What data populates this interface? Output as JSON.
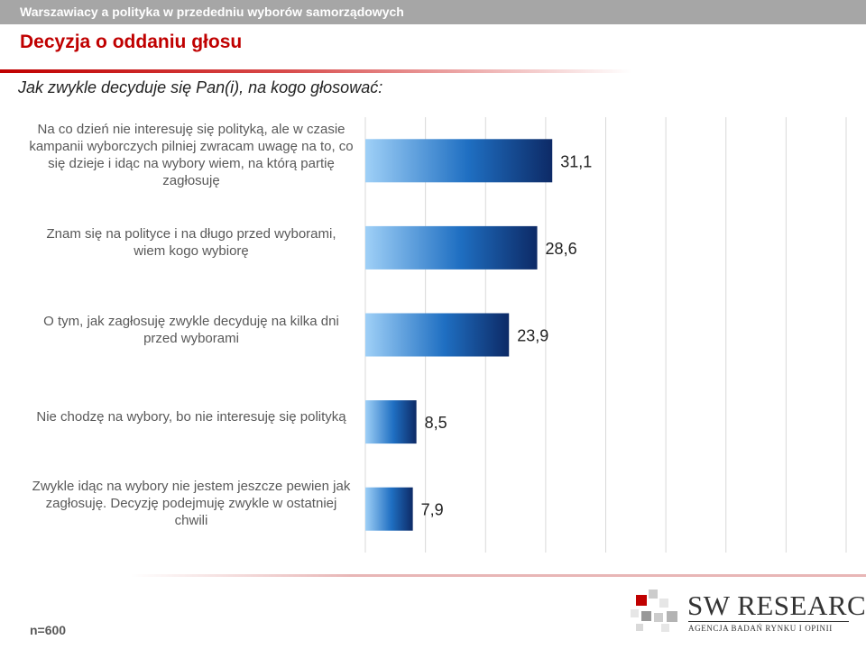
{
  "header": {
    "topbar_text": "Warszawiacy a polityka w przededniu wyborów samorządowych",
    "title": "Decyzja o oddaniu głosu",
    "question": "Jak zwykle decyduje się Pan(i), na kogo głosować:"
  },
  "footer": {
    "sample": "n=600",
    "logo_name": "SW RESEARCH",
    "logo_tagline": "AGENCJA BADAŃ RYNKU I OPINII"
  },
  "colors": {
    "accent": "#c00000",
    "bar_light": "#9fd0f7",
    "bar_mid": "#1f6fc2",
    "bar_dark": "#0d2a66",
    "grid": "#d9d9d9"
  },
  "chart_data": {
    "type": "bar",
    "orientation": "horizontal",
    "categories": [
      "Na co dzień nie interesuję się polityką, ale w czasie kampanii wyborczych pilniej zwracam uwagę na to, co się dzieje i idąc na wybory wiem, na którą partię zagłosuję",
      "Znam się na polityce i na długo przed wyborami, wiem kogo wybiorę",
      "O tym, jak zagłosuję zwykle decyduję na kilka dni przed wyborami",
      "Nie chodzę na wybory, bo nie interesuję się polityką",
      "Zwykle idąc na wybory nie jestem jeszcze pewien jak zagłosuję. Decyzję podejmuję zwykle w ostatniej chwili"
    ],
    "values": [
      31.1,
      28.6,
      23.9,
      8.5,
      7.9
    ],
    "value_labels": [
      "31,1",
      "28,6",
      "23,9",
      "8,5",
      "7,9"
    ],
    "xlim": [
      0,
      80
    ],
    "grid": true,
    "legend": "none"
  }
}
